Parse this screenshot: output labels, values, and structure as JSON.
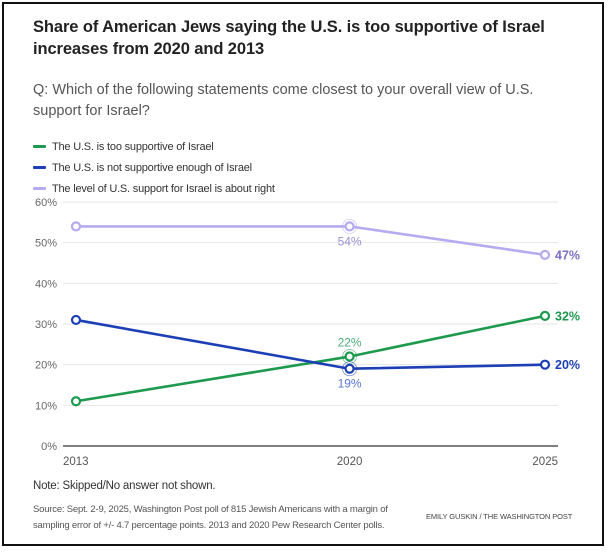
{
  "header": {
    "title": "Share of American Jews saying the U.S. is too supportive of Israel increases from 2020 and 2013",
    "subtitle": "Q: Which of the following statements come closest to your overall view of U.S. support for Israel?"
  },
  "legend": [
    {
      "label": "The U.S. is too supportive of Israel",
      "color": "#1e9a4e"
    },
    {
      "label": "The U.S. is not supportive enough of Israel",
      "color": "#1c3fb5"
    },
    {
      "label": "The level of U.S. support for Israel is about right",
      "color": "#b6aaf0"
    }
  ],
  "footer": {
    "note": "Note: Skipped/No answer not shown.",
    "source": "Source: Sept. 2-9, 2025, Washington Post poll of 815 Jewish Americans with a margin of sampling error of +/- 4.7 percentage points. 2013 and 2020 Pew Research Center polls.",
    "credit": "EMILY GUSKIN / THE WASHINGTON POST"
  },
  "chart_data": {
    "type": "line",
    "title": "Share of American Jews saying the U.S. is too supportive of Israel increases from 2020 and 2013",
    "xlabel": "",
    "ylabel": "",
    "x": [
      "2013",
      "2020",
      "2025"
    ],
    "ylim": [
      0,
      60
    ],
    "yticks": [
      0,
      10,
      20,
      30,
      40,
      50,
      60
    ],
    "ytick_labels": [
      "0%",
      "10%",
      "20%",
      "30%",
      "40%",
      "50%",
      "60%"
    ],
    "grid": true,
    "legend_position": "top-left",
    "series": [
      {
        "name": "The U.S. is too supportive of Israel",
        "color": "#1e9a4e",
        "values": [
          11,
          22,
          32
        ],
        "labels": [
          null,
          "22%",
          "32%"
        ],
        "label_colors": [
          null,
          "#4caf78",
          "#1e9a4e"
        ]
      },
      {
        "name": "The U.S. is not supportive enough of Israel",
        "color": "#1c3fb5",
        "values": [
          31,
          19,
          20
        ],
        "labels": [
          null,
          "19%",
          "20%"
        ],
        "label_colors": [
          null,
          "#5a78d6",
          "#1c3fb5"
        ]
      },
      {
        "name": "The level of U.S. support for Israel is about right",
        "color": "#b6aaf0",
        "values": [
          54,
          54,
          47
        ],
        "labels": [
          null,
          "54%",
          "47%"
        ],
        "label_colors": [
          null,
          "#9b90d4",
          "#7c6fc4"
        ]
      }
    ]
  }
}
